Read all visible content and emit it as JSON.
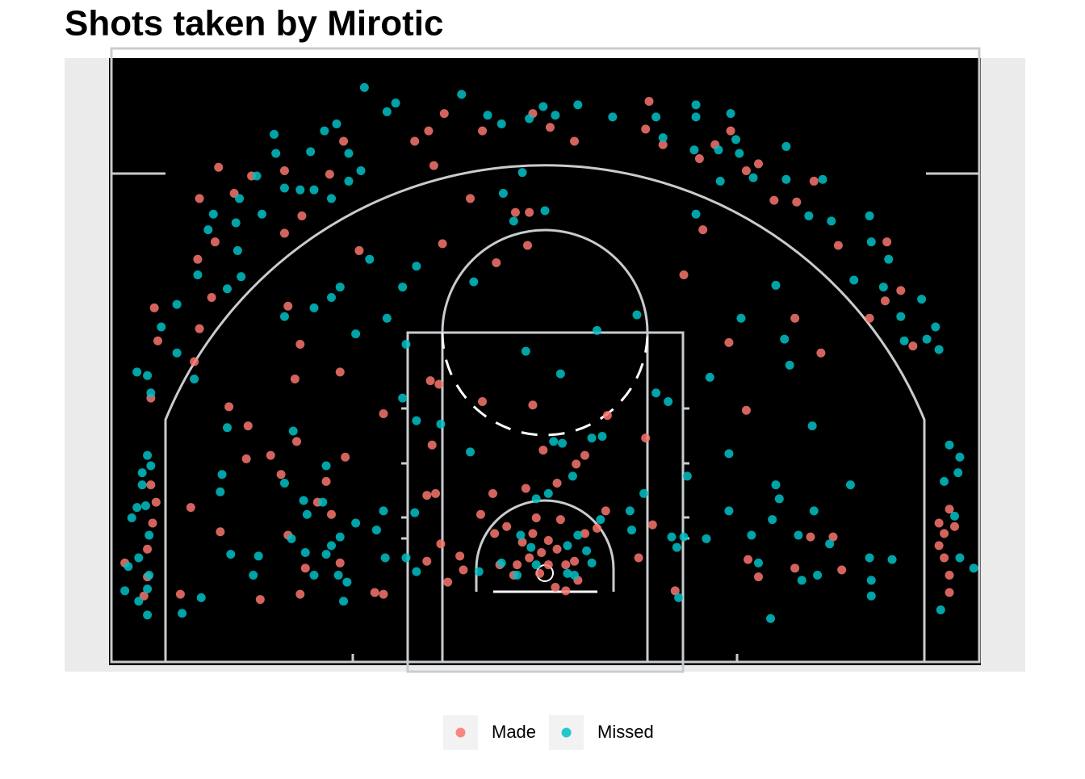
{
  "chart_data": {
    "type": "scatter",
    "title": "Shots taken by Mirotic",
    "xlim": [
      -27.67,
      27.67
    ],
    "ylim": [
      -0.56,
      34.79
    ],
    "grid": false,
    "legend": "bottom",
    "series": [
      {
        "name": "Made",
        "color": "#f8766d",
        "x": [
          6.0,
          -0.7,
          -5.8,
          0.3,
          -3.6,
          -6.7,
          -7.5,
          -6.4,
          1.7,
          5.8,
          6.8,
          9.8,
          10.7,
          8.9,
          11.6,
          12.3,
          13.2,
          14.5,
          15.5,
          16.9,
          19.7,
          20.5,
          18.7,
          21.2,
          14.4,
          15.9,
          10.6,
          11.6,
          8.0,
          9.1,
          -0.9,
          -1.7,
          -4.3,
          -5.9,
          -1.0,
          -2.8,
          -10.7,
          -14.8,
          -14.1,
          -14.4,
          -11.8,
          -18.8,
          -19.9,
          -17.9,
          -16.9,
          -15.0,
          -12.4,
          -11.6,
          -15.0,
          -14.0,
          -19.0,
          -20.0,
          -19.2,
          -22.5,
          -19.9,
          -22.3,
          -20.2,
          -22.7,
          -18.2,
          -17.1,
          -14.3,
          -15.8,
          -17.2,
          -15.2,
          -12.6,
          -11.5,
          -20.4,
          -18.7,
          -22.7,
          -22.4,
          -22.6,
          -22.9,
          -24.2,
          -22.9,
          -23.1,
          -21.0,
          -16.4,
          -14.1,
          -13.8,
          -14.8,
          -13.1,
          -12.3,
          -11.8,
          -9.8,
          -9.3,
          -6.8,
          -6.0,
          -4.9,
          -4.7,
          -5.6,
          -6.8,
          -6.3,
          -6.5,
          -6.6,
          -6.1,
          -9.3,
          -3.6,
          -0.7,
          3.6,
          5.8,
          2.3,
          1.8,
          -0.1,
          -1.1,
          -3.0,
          0.7,
          -3.7,
          3.5,
          5.4,
          6.2,
          7.5,
          -0.5,
          -2.2,
          -0.7,
          0.2,
          -0.2,
          0.7,
          -0.9,
          -1.6,
          1.2,
          1.7,
          0.2,
          -0.3,
          0.6,
          1.2,
          1.9,
          -2.6,
          -1.8,
          2.3,
          3.0,
          0.9,
          -2.9,
          -1.3,
          15.3,
          16.6,
          11.7,
          12.3,
          14.4,
          17.1,
          22.7,
          23.3,
          23.6,
          23.0,
          22.7,
          23.0,
          23.3,
          23.3,
          19.6
        ],
        "values": [
          32.3,
          31.6,
          31.6,
          30.8,
          30.6,
          30.6,
          30.0,
          28.6,
          30.0,
          30.7,
          29.8,
          29.8,
          30.6,
          29.0,
          28.3,
          28.7,
          26.6,
          26.5,
          27.7,
          24.0,
          24.2,
          21.4,
          19.8,
          18.2,
          19.8,
          17.8,
          18.4,
          14.5,
          22.3,
          24.9,
          25.9,
          25.9,
          26.7,
          24.1,
          24.0,
          23.0,
          23.7,
          20.5,
          18.3,
          16.3,
          16.7,
          28.5,
          26.7,
          27.0,
          28.0,
          28.3,
          28.1,
          30.0,
          24.7,
          25.7,
          24.2,
          23.2,
          21.0,
          20.4,
          19.2,
          18.5,
          17.3,
          15.2,
          14.7,
          13.6,
          12.7,
          11.9,
          11.7,
          10.8,
          10.4,
          11.8,
          8.9,
          7.5,
          10.2,
          9.2,
          8.0,
          6.5,
          5.7,
          4.9,
          3.8,
          3.9,
          3.6,
          3.9,
          5.4,
          7.3,
          9.2,
          8.5,
          5.7,
          4.0,
          3.9,
          5.8,
          6.8,
          6.1,
          5.3,
          4.6,
          9.6,
          9.7,
          12.5,
          16.2,
          16.0,
          14.3,
          15.0,
          14.8,
          14.2,
          12.9,
          11.9,
          11.4,
          12.2,
          10.0,
          9.7,
          10.3,
          8.5,
          8.7,
          6.0,
          7.9,
          4.1,
          8.3,
          7.8,
          7.4,
          7.0,
          6.3,
          6.5,
          6.0,
          5.6,
          5.6,
          5.8,
          5.6,
          5.1,
          4.3,
          4.1,
          4.7,
          5.6,
          5.0,
          7.4,
          7.7,
          8.2,
          7.4,
          6.9,
          7.2,
          7.2,
          5.9,
          4.9,
          5.4,
          5.3,
          8.0,
          8.8,
          7.8,
          7.4,
          6.7,
          6.0,
          5.0,
          4.0,
          20.8
        ]
      },
      {
        "name": "Missed",
        "color": "#00bfc4",
        "x": [
          -10.4,
          -9.1,
          -8.6,
          -4.8,
          -3.3,
          -2.5,
          -0.9,
          -0.1,
          0.6,
          1.9,
          3.9,
          6.4,
          8.7,
          8.7,
          10.7,
          6.8,
          8.6,
          10.0,
          11.0,
          11.2,
          13.9,
          16.0,
          13.9,
          12.0,
          10.1,
          15.2,
          16.5,
          18.7,
          18.8,
          19.8,
          17.8,
          19.5,
          21.7,
          20.5,
          22.5,
          22.7,
          20.7,
          22.0,
          13.3,
          13.8,
          11.3,
          8.7,
          9.5,
          14.1,
          15.4,
          10.6,
          13.3,
          13.5,
          17.6,
          10.6,
          13.1,
          15.5,
          11.9,
          14.6,
          16.4,
          12.3,
          14.8,
          15.7,
          18.7,
          20.0,
          18.8,
          18.8,
          13.0,
          23.3,
          23.9,
          23.8,
          23.0,
          23.6,
          23.9,
          24.7,
          22.8,
          -1.3,
          -2.4,
          0.0,
          -1.8,
          -10.1,
          -7.4,
          -8.2,
          -4.1,
          -11.8,
          -12.3,
          -13.3,
          -15.0,
          -10.9,
          -9.1,
          -15.6,
          -15.5,
          -16.6,
          -17.6,
          -19.1,
          -19.4,
          -17.7,
          -17.5,
          -18.3,
          -20.0,
          -21.2,
          -22.1,
          -21.2,
          -22.9,
          -23.5,
          -22.7,
          -20.2,
          -13.5,
          -12.0,
          -12.7,
          -11.3,
          -10.6,
          -11.3,
          -12.3,
          -13.3,
          -14.1,
          -15.0,
          -16.3,
          -17.8,
          -1.1,
          0.9,
          3.0,
          5.3,
          6.4,
          7.1,
          0.5,
          1.0,
          2.7,
          3.3,
          1.6,
          0.2,
          -0.5,
          -4.3,
          -6.0,
          -7.4,
          -8.2,
          -8.0,
          5.7,
          4.9,
          5.0,
          7.3,
          8.0,
          7.6,
          8.2,
          9.3,
          7.7,
          3.2,
          1.9,
          1.3,
          -0.8,
          -1.4,
          -0.5,
          1.3,
          2.7,
          2.4,
          -2.5,
          -1.6,
          -3.8,
          1.7,
          -7.5,
          -8.0,
          -9.2,
          -9.7,
          -9.3,
          -7.4,
          -10.9,
          -11.8,
          -11.4,
          -11.6,
          -11.9,
          -12.6,
          -12.3,
          -13.3,
          -13.8,
          -13.7,
          -13.9,
          -12.8,
          -12.6,
          -15.0,
          -14.5,
          -14.6,
          -16.5,
          -16.8,
          -18.1,
          -18.7,
          -18.6,
          -18.3,
          -19.8,
          -20.9,
          -22.9,
          -23.2,
          -22.7,
          -23.2,
          -23.5,
          -23.0,
          -23.8,
          -22.8,
          -23.4,
          -24.0,
          -22.8,
          -22.9,
          -24.2,
          -23.4,
          -22.9
        ],
        "values": [
          33.1,
          31.7,
          32.2,
          32.7,
          31.5,
          31.0,
          31.3,
          32.0,
          31.5,
          32.1,
          31.4,
          31.4,
          32.1,
          31.4,
          31.6,
          30.2,
          29.5,
          29.5,
          30.1,
          29.3,
          29.7,
          27.8,
          27.8,
          27.9,
          27.7,
          25.7,
          25.4,
          25.7,
          24.2,
          23.2,
          22.0,
          21.6,
          20.9,
          19.9,
          19.3,
          18.0,
          18.5,
          18.6,
          21.7,
          18.6,
          19.8,
          25.8,
          16.4,
          17.1,
          13.6,
          12.0,
          10.2,
          9.4,
          10.2,
          8.7,
          8.2,
          8.7,
          7.3,
          7.3,
          6.8,
          5.7,
          4.7,
          5.0,
          6.0,
          5.9,
          4.7,
          3.8,
          2.5,
          12.5,
          11.8,
          10.9,
          10.4,
          8.4,
          6.0,
          5.4,
          3.0,
          28.2,
          27.0,
          26.0,
          25.4,
          23.2,
          22.8,
          21.6,
          21.9,
          21.6,
          21.0,
          20.4,
          19.9,
          18.9,
          19.8,
          30.4,
          29.3,
          28.0,
          26.7,
          25.8,
          24.9,
          23.7,
          22.2,
          21.5,
          22.3,
          20.6,
          19.3,
          17.8,
          16.5,
          16.7,
          15.5,
          16.3,
          29.4,
          31.0,
          30.6,
          29.3,
          28.3,
          27.7,
          26.7,
          27.2,
          27.2,
          27.3,
          25.8,
          25.3,
          17.9,
          16.6,
          19.1,
          20.0,
          15.5,
          15.0,
          12.7,
          12.6,
          12.9,
          13.0,
          10.7,
          9.7,
          9.4,
          12.1,
          13.7,
          13.9,
          15.2,
          18.3,
          9.7,
          8.7,
          7.6,
          7.2,
          7.2,
          6.6,
          10.7,
          7.1,
          3.7,
          8.2,
          7.3,
          6.7,
          6.6,
          7.3,
          5.6,
          5.1,
          5.7,
          6.4,
          5.7,
          5.0,
          5.2,
          5.0,
          8.6,
          6.0,
          6.0,
          7.6,
          8.7,
          5.2,
          8.0,
          7.2,
          4.6,
          3.5,
          5.0,
          6.2,
          6.7,
          5.0,
          6.3,
          8.5,
          9.3,
          9.2,
          11.3,
          10.3,
          13.3,
          7.1,
          6.1,
          5.0,
          6.2,
          9.8,
          10.8,
          13.5,
          3.7,
          2.8,
          11.9,
          10.9,
          11.3,
          10.2,
          8.9,
          9.0,
          8.3,
          7.3,
          6.0,
          5.5,
          5.0,
          4.2,
          4.1,
          3.5,
          2.7
        ]
      }
    ]
  }
}
